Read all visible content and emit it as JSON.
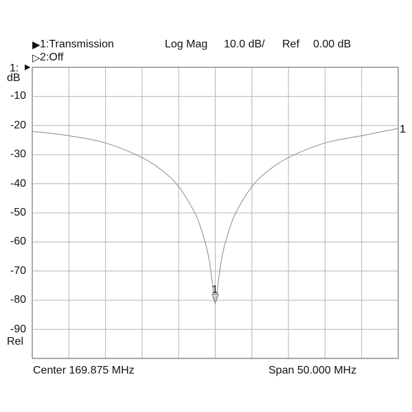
{
  "header": {
    "trace1_marker": "▶",
    "trace1_label": "1:Transmission",
    "trace2_marker": "▷",
    "trace2_label": "2:Off",
    "format": "Log Mag",
    "scale": "10.0 dB/",
    "ref_label": "Ref",
    "ref_value": "0.00 dB",
    "ref_pointer": "1:",
    "ref_arrow": "▶",
    "unit": "dB",
    "rel": "Rel"
  },
  "footer": {
    "center": "Center 169.875 MHz",
    "span": "Span 50.000 MHz"
  },
  "chart_data": {
    "type": "line",
    "ylabel": "dB",
    "yticks": [
      -10,
      -20,
      -30,
      -40,
      -50,
      -60,
      -70,
      -80,
      -90
    ],
    "yticklabels": [
      "-10",
      "-20",
      "-30",
      "-40",
      "-50",
      "-60",
      "-70",
      "-80",
      "-90"
    ],
    "ylim": [
      -100,
      0
    ],
    "xlim": [
      144.875,
      194.875
    ],
    "x_unit": "MHz",
    "grid": true,
    "series": [
      {
        "name": "1",
        "x": [
          144.875,
          149.875,
          154.875,
          159.875,
          162.875,
          164.875,
          166.875,
          167.875,
          168.875,
          169.375,
          169.875,
          170.375,
          170.875,
          171.875,
          172.875,
          174.875,
          176.875,
          179.875,
          184.875,
          189.875,
          194.875
        ],
        "y": [
          -22,
          -23.5,
          -26,
          -31,
          -36,
          -41,
          -49,
          -55,
          -64,
          -72,
          -81,
          -72,
          -64,
          -55,
          -49,
          -41,
          -36,
          -31,
          -26,
          -23.5,
          -21
        ]
      }
    ],
    "marker": {
      "label": "1",
      "x": 169.875,
      "y": -81
    },
    "trace_end_label": "1",
    "colors": {
      "trace": "#888888",
      "grid": "#b3b3b3",
      "frame": "#555555"
    }
  }
}
